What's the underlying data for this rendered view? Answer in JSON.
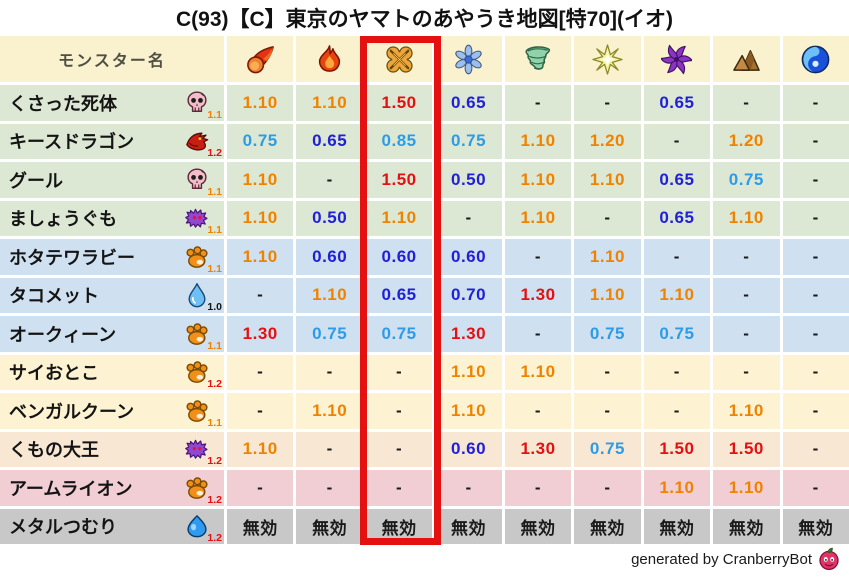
{
  "title": "C(93)【C】東京のヤマトのあやうき地図[特70](イオ)",
  "credit": {
    "text": "generated by CranberryBot",
    "icon": "cranberry-icon"
  },
  "colors": {
    "header_bg": "#faf1cf",
    "highlight_border": "#e51010",
    "groups": {
      "green": "#dce8d4",
      "blue": "#cfe0f1",
      "yellow": "#fdf3d2",
      "peach": "#f8e8d3",
      "pink": "#f0ced4",
      "gray": "#c8c8c8"
    },
    "values": {
      "up_big": "#e31111",
      "up_small": "#ef8300",
      "down_small": "#2d9ce8",
      "down_big": "#2020d8",
      "neutral": "#1a1a1a"
    },
    "badge": {
      "orange": "#ef8300",
      "red": "#e31111",
      "black": "#141414"
    }
  },
  "chart_data": {
    "type": "table",
    "name_column_header": "モンスター名",
    "element_columns": [
      {
        "key": "mera",
        "icon": "fireball-icon"
      },
      {
        "key": "gira",
        "icon": "flame-icon"
      },
      {
        "key": "io",
        "icon": "explosion-icon",
        "highlighted": true
      },
      {
        "key": "hyado",
        "icon": "snowflake-icon"
      },
      {
        "key": "bagi",
        "icon": "tornado-icon"
      },
      {
        "key": "dein",
        "icon": "starburst-icon"
      },
      {
        "key": "doruma",
        "icon": "pinwheel-icon"
      },
      {
        "key": "earth",
        "icon": "mountain-icon"
      },
      {
        "key": "wave",
        "icon": "wave-icon"
      }
    ],
    "highlighted_column_index": 2,
    "rows": [
      {
        "name": "くさった死体",
        "icon": "skull-icon",
        "badge": "1.1",
        "badge_color": "orange",
        "group": "green",
        "values": [
          "1.10",
          "1.10",
          "1.50",
          "0.65",
          "-",
          "-",
          "0.65",
          "-",
          "-"
        ]
      },
      {
        "name": "キースドラゴン",
        "icon": "dragon-icon",
        "badge": "1.2",
        "badge_color": "red",
        "group": "green",
        "values": [
          "0.75",
          "0.65",
          "0.85",
          "0.75",
          "1.10",
          "1.20",
          "-",
          "1.20",
          "-"
        ]
      },
      {
        "name": "グール",
        "icon": "skull-icon",
        "badge": "1.1",
        "badge_color": "orange",
        "group": "green",
        "values": [
          "1.10",
          "-",
          "1.50",
          "0.50",
          "1.10",
          "1.10",
          "0.65",
          "0.75",
          "-"
        ]
      },
      {
        "name": "ましょうぐも",
        "icon": "spider-icon",
        "badge": "1.1",
        "badge_color": "orange",
        "group": "green",
        "values": [
          "1.10",
          "0.50",
          "1.10",
          "-",
          "1.10",
          "-",
          "0.65",
          "1.10",
          "-"
        ]
      },
      {
        "name": "ホタテワラビー",
        "icon": "paw-icon",
        "badge": "1.1",
        "badge_color": "orange",
        "group": "blue",
        "values": [
          "1.10",
          "0.60",
          "0.60",
          "0.60",
          "-",
          "1.10",
          "-",
          "-",
          "-"
        ]
      },
      {
        "name": "タコメット",
        "icon": "droplet-icon",
        "badge": "1.0",
        "badge_color": "black",
        "group": "blue",
        "values": [
          "-",
          "1.10",
          "0.65",
          "0.70",
          "1.30",
          "1.10",
          "1.10",
          "-",
          "-"
        ]
      },
      {
        "name": "オークィーン",
        "icon": "paw-icon",
        "badge": "1.1",
        "badge_color": "orange",
        "group": "blue",
        "values": [
          "1.30",
          "0.75",
          "0.75",
          "1.30",
          "-",
          "0.75",
          "0.75",
          "-",
          "-"
        ]
      },
      {
        "name": "サイおとこ",
        "icon": "paw-icon",
        "badge": "1.2",
        "badge_color": "red",
        "group": "yellow",
        "values": [
          "-",
          "-",
          "-",
          "1.10",
          "1.10",
          "-",
          "-",
          "-",
          "-"
        ]
      },
      {
        "name": "ベンガルクーン",
        "icon": "paw-icon",
        "badge": "1.1",
        "badge_color": "orange",
        "group": "yellow",
        "values": [
          "-",
          "1.10",
          "-",
          "1.10",
          "-",
          "-",
          "-",
          "1.10",
          "-"
        ]
      },
      {
        "name": "くもの大王",
        "icon": "spider-icon",
        "badge": "1.2",
        "badge_color": "red",
        "group": "peach",
        "values": [
          "1.10",
          "-",
          "-",
          "0.60",
          "1.30",
          "0.75",
          "1.50",
          "1.50",
          "-"
        ]
      },
      {
        "name": "アームライオン",
        "icon": "paw-icon",
        "badge": "1.2",
        "badge_color": "red",
        "group": "pink",
        "values": [
          "-",
          "-",
          "-",
          "-",
          "-",
          "-",
          "1.10",
          "1.10",
          "-"
        ]
      },
      {
        "name": "メタルつむり",
        "icon": "slime-icon",
        "badge": "1.2",
        "badge_color": "red",
        "group": "gray",
        "values": [
          "無効",
          "無効",
          "無効",
          "無効",
          "無効",
          "無効",
          "無効",
          "無効",
          "無効"
        ]
      }
    ]
  }
}
